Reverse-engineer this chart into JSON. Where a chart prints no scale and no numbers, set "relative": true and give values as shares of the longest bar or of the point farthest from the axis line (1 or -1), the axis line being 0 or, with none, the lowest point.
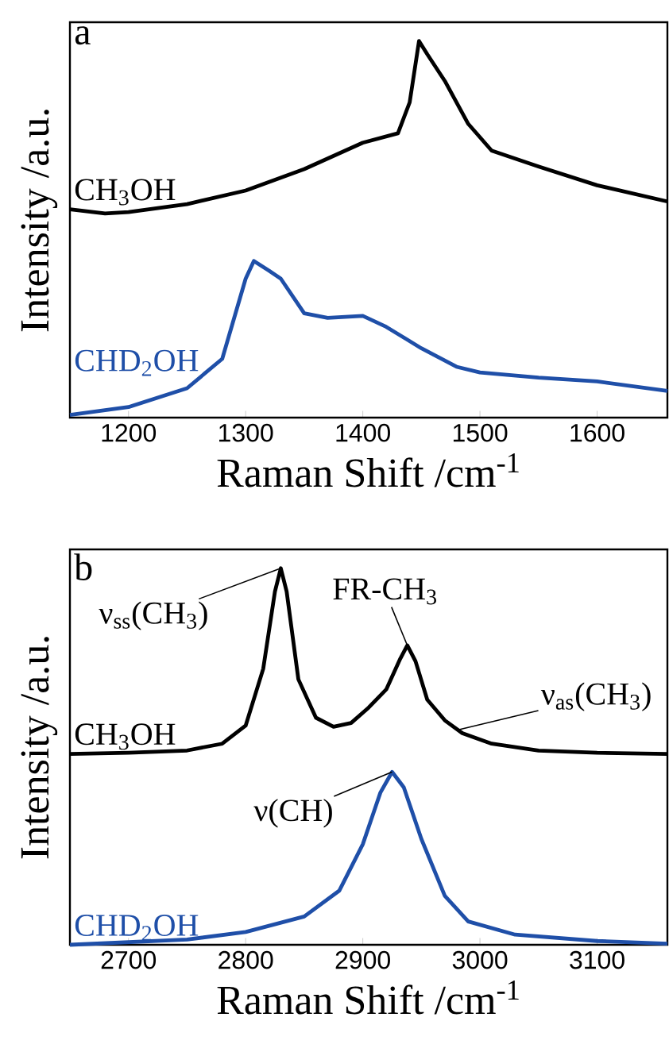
{
  "chart_data": [
    {
      "type": "line",
      "relative": true,
      "xlabel": "Raman Shift /cm$^{-1}$",
      "ylabel": "Intensity /a.u.",
      "xlim": [
        1150,
        1660
      ],
      "xticks": [
        1200,
        1300,
        1400,
        1500,
        1600
      ],
      "annotations": [
        "a"
      ],
      "series": [
        {
          "name": "CH$_{3}$OH",
          "color": "#000000",
          "x": [
            1150,
            1180,
            1200,
            1250,
            1300,
            1350,
            1400,
            1430,
            1440,
            1448,
            1455,
            1470,
            1490,
            1510,
            1550,
            1600,
            1660
          ],
          "values": [
            0.553,
            0.542,
            0.546,
            0.567,
            0.603,
            0.66,
            0.73,
            0.755,
            0.837,
            1.0,
            0.965,
            0.894,
            0.78,
            0.709,
            0.667,
            0.617,
            0.574
          ]
        },
        {
          "name": "CHD$_{2}$OH",
          "color": "#1f4fa8",
          "x": [
            1150,
            1200,
            1250,
            1280,
            1300,
            1307,
            1320,
            1330,
            1350,
            1370,
            1400,
            1420,
            1450,
            1480,
            1500,
            1550,
            1600,
            1660
          ],
          "values": [
            0.007,
            0.028,
            0.078,
            0.156,
            0.369,
            0.416,
            0.39,
            0.369,
            0.277,
            0.265,
            0.27,
            0.241,
            0.184,
            0.135,
            0.12,
            0.106,
            0.096,
            0.071
          ]
        }
      ]
    },
    {
      "type": "line",
      "relative": true,
      "xlabel": "Raman Shift /cm$^{-1}$",
      "ylabel": "Intensity /a.u.",
      "xlim": [
        2650,
        3160
      ],
      "xticks": [
        2700,
        2800,
        2900,
        3000,
        3100
      ],
      "annotations": [
        "b",
        {
          "text": "ν$_{ss}$(CH$_{3}$)",
          "x": 2830,
          "y": 1.0
        },
        {
          "text": "FR-CH$_{3}$",
          "x": 2938,
          "y": 0.795
        },
        {
          "text": "ν$_{as}$(CH$_{3}$)",
          "x": 2980,
          "y": 0.57
        },
        {
          "text": "ν(CH)",
          "x": 2925,
          "y": 0.459
        }
      ],
      "series": [
        {
          "name": "CH$_{3}$OH",
          "color": "#000000",
          "x": [
            2650,
            2700,
            2750,
            2780,
            2800,
            2815,
            2825,
            2830,
            2835,
            2845,
            2860,
            2875,
            2890,
            2905,
            2920,
            2932,
            2938,
            2945,
            2955,
            2970,
            2985,
            3010,
            3050,
            3100,
            3160
          ],
          "values": [
            0.507,
            0.51,
            0.516,
            0.534,
            0.582,
            0.733,
            0.938,
            1.0,
            0.938,
            0.705,
            0.603,
            0.579,
            0.589,
            0.63,
            0.678,
            0.76,
            0.795,
            0.753,
            0.651,
            0.596,
            0.562,
            0.534,
            0.516,
            0.51,
            0.507
          ]
        },
        {
          "name": "CHD$_{2}$OH",
          "color": "#1f4fa8",
          "x": [
            2650,
            2750,
            2800,
            2850,
            2880,
            2900,
            2915,
            2925,
            2935,
            2950,
            2970,
            2990,
            3030,
            3100,
            3160
          ],
          "values": [
            0.0,
            0.014,
            0.034,
            0.075,
            0.144,
            0.267,
            0.404,
            0.459,
            0.418,
            0.281,
            0.13,
            0.062,
            0.027,
            0.01,
            0.003
          ]
        }
      ]
    }
  ]
}
